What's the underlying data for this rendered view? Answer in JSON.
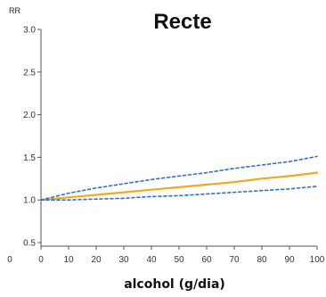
{
  "chart_data": {
    "type": "line",
    "title": "Recte",
    "ylabel": "RR",
    "xlabel": "alcohol (g/dia)",
    "x_ticks": [
      0,
      10,
      20,
      30,
      40,
      50,
      60,
      70,
      80,
      90,
      100
    ],
    "y_ticks": [
      0.5,
      1.0,
      1.5,
      2.0,
      2.5,
      3.0
    ],
    "y_tick_labels": [
      "0.5",
      "1.0",
      "1.5",
      "2.0",
      "2.5",
      "3.0"
    ],
    "xlim": [
      0,
      100
    ],
    "ylim": [
      0.5,
      3.0
    ],
    "extra_left_label": "0",
    "grid": false,
    "series": [
      {
        "role": "estimate",
        "style": "solid",
        "color": "#f5a623",
        "x": [
          0,
          10,
          20,
          30,
          40,
          50,
          60,
          70,
          80,
          90,
          100
        ],
        "y": [
          1.0,
          1.03,
          1.06,
          1.09,
          1.12,
          1.15,
          1.18,
          1.21,
          1.25,
          1.28,
          1.32
        ]
      },
      {
        "role": "upper-ci",
        "style": "dashed",
        "color": "#2f6fd6",
        "x": [
          0,
          10,
          20,
          30,
          40,
          50,
          60,
          70,
          80,
          90,
          100
        ],
        "y": [
          1.0,
          1.08,
          1.14,
          1.19,
          1.24,
          1.28,
          1.32,
          1.37,
          1.41,
          1.45,
          1.51
        ]
      },
      {
        "role": "lower-ci",
        "style": "dashed",
        "color": "#2f6fd6",
        "x": [
          0,
          10,
          20,
          30,
          40,
          50,
          60,
          70,
          80,
          90,
          100
        ],
        "y": [
          1.0,
          1.0,
          1.01,
          1.02,
          1.04,
          1.05,
          1.07,
          1.09,
          1.11,
          1.13,
          1.16
        ]
      }
    ]
  }
}
